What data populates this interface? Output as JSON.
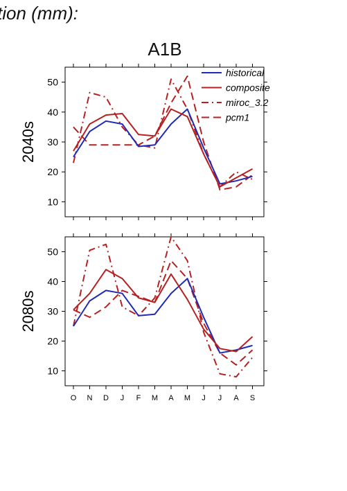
{
  "page": {
    "heading": "tion (mm):",
    "scenario": "A1B"
  },
  "chart_data": [
    {
      "type": "line",
      "panel_label": "2040s",
      "categories": [
        "O",
        "N",
        "D",
        "J",
        "F",
        "M",
        "A",
        "M",
        "J",
        "J",
        "A",
        "S"
      ],
      "ylim": [
        5,
        55
      ],
      "yticks": [
        10,
        20,
        30,
        40,
        50
      ],
      "grid": false,
      "legend_position": "top-right",
      "series": [
        {
          "name": "historical",
          "color": "#1f2bb5",
          "dash": "solid",
          "values": [
            25,
            33.5,
            37,
            36,
            28.5,
            29,
            36,
            41,
            28,
            16,
            17,
            18.5
          ]
        },
        {
          "name": "composite",
          "color": "#b52020",
          "dash": "solid",
          "values": [
            27,
            36,
            39,
            39.5,
            32.5,
            32,
            41,
            38.5,
            26,
            15,
            18,
            21
          ]
        },
        {
          "name": "miroc_3.2",
          "color": "#b52020",
          "dash": "dashdot",
          "values": [
            23,
            46.5,
            45,
            35,
            29,
            28,
            51,
            41,
            26,
            15,
            20,
            17.5
          ]
        },
        {
          "name": "pcm1",
          "color": "#b52020",
          "dash": "dash",
          "values": [
            35,
            29,
            29,
            29,
            29,
            32,
            43,
            52,
            30,
            14,
            15,
            19
          ]
        }
      ]
    },
    {
      "type": "line",
      "panel_label": "2080s",
      "categories": [
        "O",
        "N",
        "D",
        "J",
        "F",
        "M",
        "A",
        "M",
        "J",
        "J",
        "A",
        "S"
      ],
      "ylim": [
        5,
        55
      ],
      "yticks": [
        10,
        20,
        30,
        40,
        50
      ],
      "grid": false,
      "series": [
        {
          "name": "historical",
          "color": "#1f2bb5",
          "dash": "solid",
          "values": [
            25,
            33.5,
            37,
            36,
            28.5,
            29,
            36,
            41,
            28,
            16,
            17,
            18.5
          ]
        },
        {
          "name": "composite",
          "color": "#b52020",
          "dash": "solid",
          "values": [
            30.5,
            36,
            44,
            41,
            34.5,
            33,
            42.5,
            34,
            24,
            17.5,
            16.5,
            21.5
          ]
        },
        {
          "name": "miroc_3.2",
          "color": "#b52020",
          "dash": "dashdot",
          "values": [
            25,
            50.5,
            52.5,
            31.5,
            28.5,
            34.5,
            55,
            47,
            23,
            9,
            8,
            14.5
          ]
        },
        {
          "name": "pcm1",
          "color": "#b52020",
          "dash": "dash",
          "values": [
            30.5,
            28,
            31.5,
            37,
            35,
            33,
            47,
            41,
            26,
            16,
            12,
            17
          ]
        }
      ]
    }
  ]
}
